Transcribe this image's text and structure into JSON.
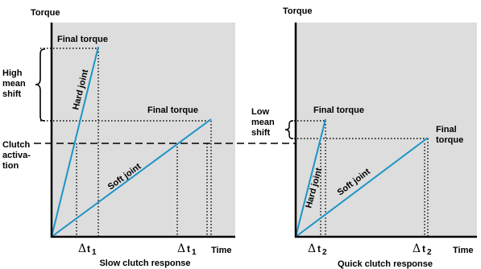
{
  "colors": {
    "panel_bg": "#dddddd",
    "line_blue": "#1f93c6",
    "axis": "#000000"
  },
  "left_panel": {
    "y_axis_label": "Torque",
    "x_axis_label": "Time",
    "caption": "Slow clutch response",
    "hard_final": "Final torque",
    "soft_final": "Final torque",
    "hard_joint": "Hard joint",
    "soft_joint": "Soft joint",
    "delta_symbol": "Δ",
    "t_letter": "t",
    "subscript": "1",
    "high_mean_shift": [
      "High",
      "mean",
      "shift"
    ],
    "clutch_activation": [
      "Clutch",
      "activa-",
      "tion"
    ]
  },
  "right_panel": {
    "y_axis_label": "Torque",
    "x_axis_label": "Time",
    "caption": "Quick clutch response",
    "hard_final": "Final torque",
    "soft_final": [
      "Final",
      "torque"
    ],
    "hard_joint": "Hard joint",
    "soft_joint": "Soft joint",
    "delta_symbol": "Δ",
    "t_letter": "t",
    "subscript": "2",
    "low_mean_shift": [
      "Low",
      "mean",
      "shift"
    ]
  }
}
